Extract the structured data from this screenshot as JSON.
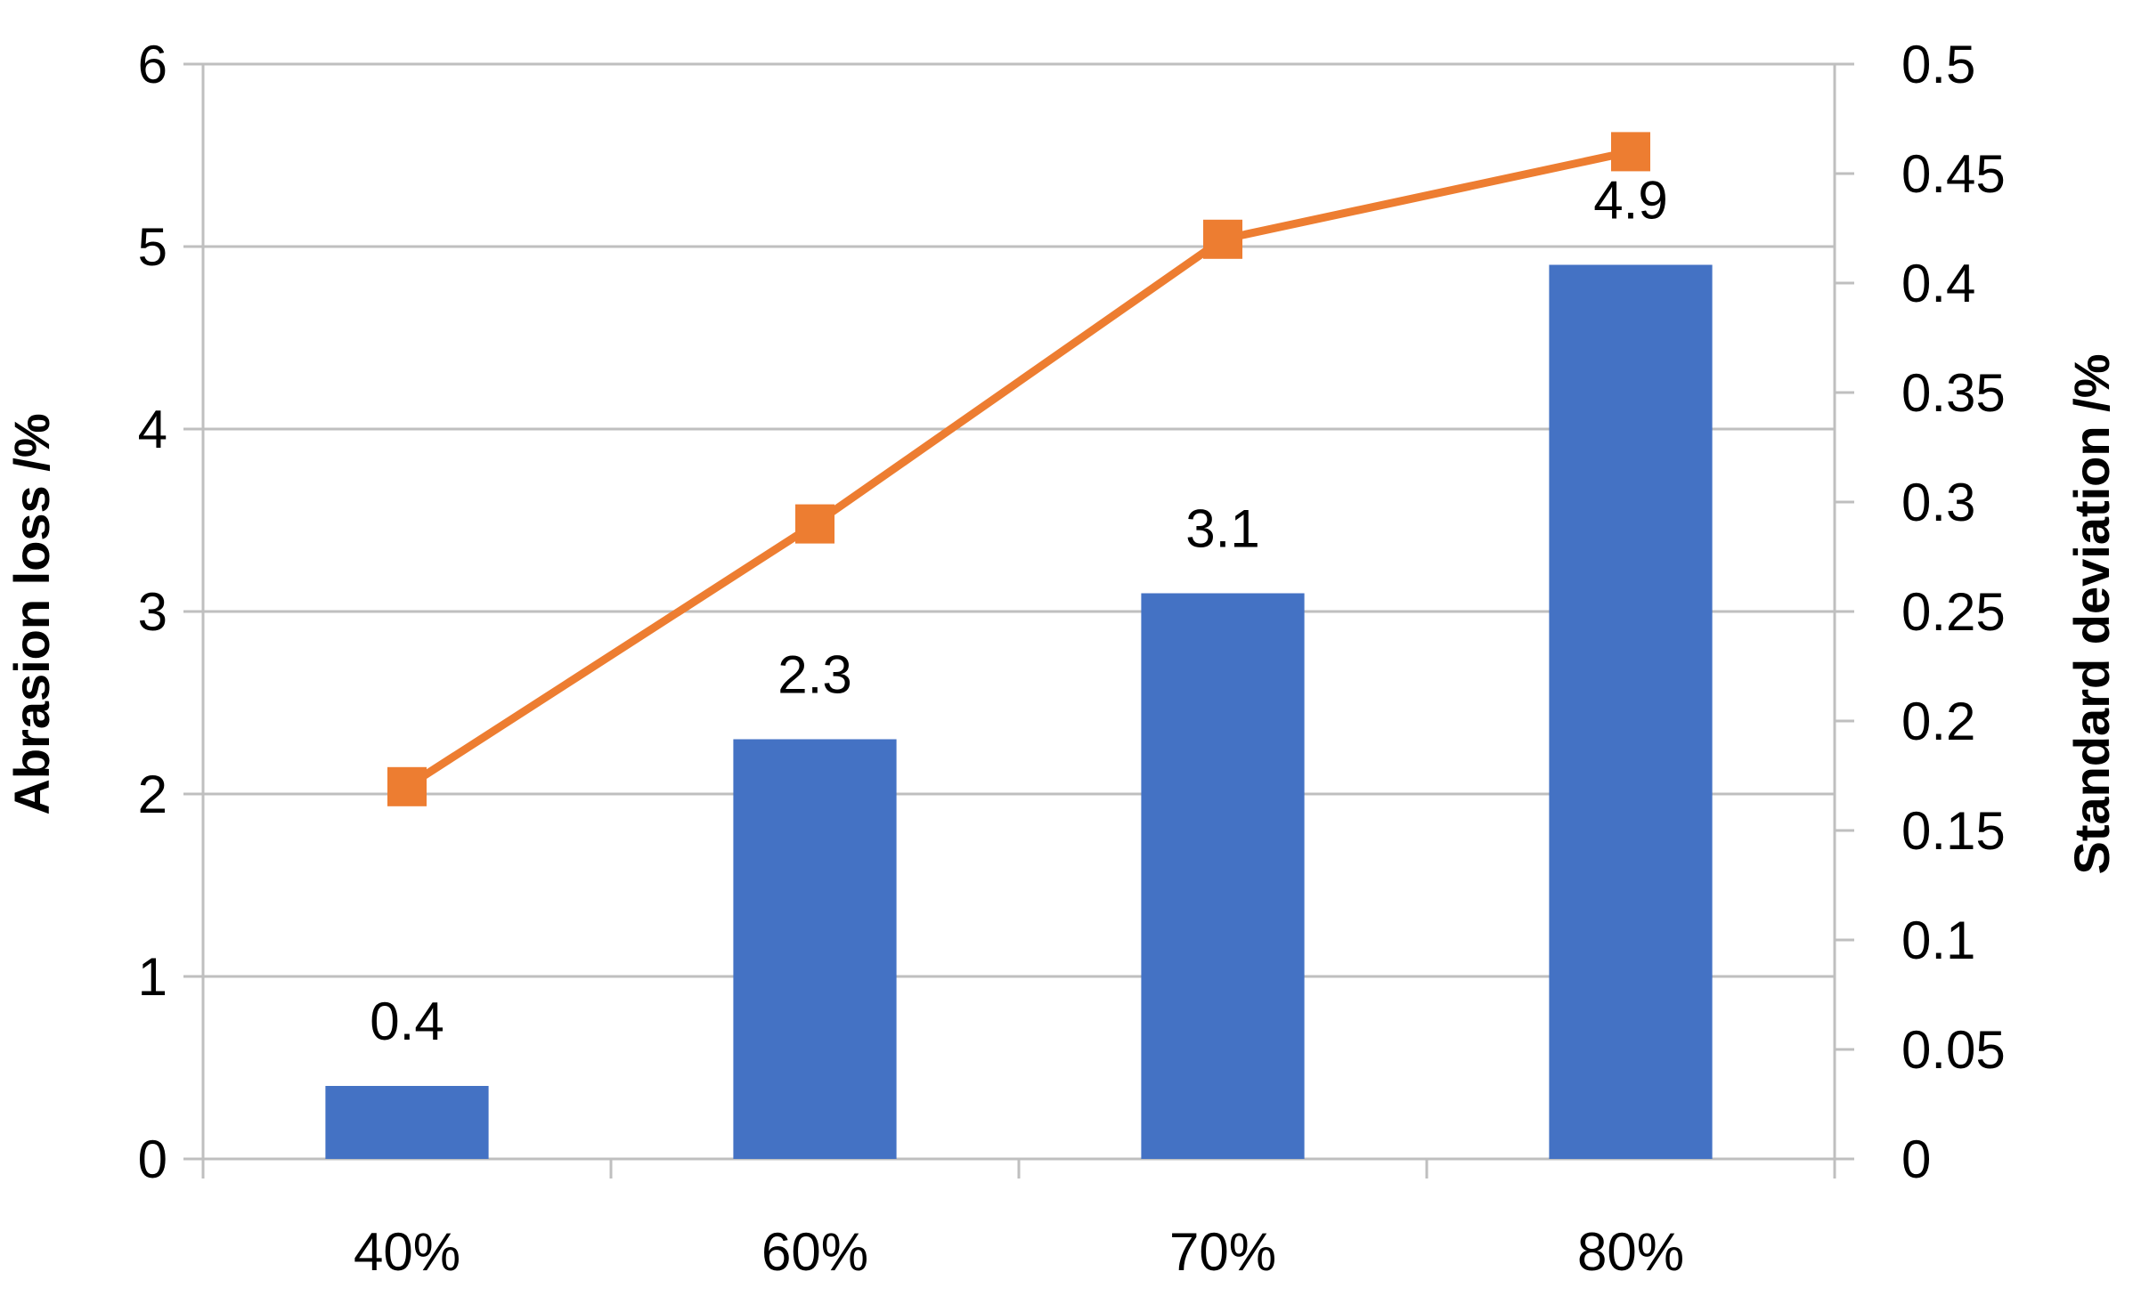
{
  "chart_data": {
    "type": "bar",
    "categories": [
      "40%",
      "60%",
      "70%",
      "80%"
    ],
    "series": [
      {
        "type": "bar",
        "axis": "left",
        "values": [
          0.4,
          2.3,
          3.1,
          4.9
        ],
        "color": "#4472c4",
        "data_labels": [
          "0.4",
          "2.3",
          "3.1",
          "4.9"
        ]
      },
      {
        "type": "line",
        "axis": "right",
        "values": [
          0.17,
          0.29,
          0.42,
          0.46
        ],
        "color": "#ed7d31",
        "marker": "square"
      }
    ],
    "title": "",
    "xlabel": "",
    "ylabel": "Abrasion loss /%",
    "y2label": "Standard deviation /%",
    "ylim": [
      0,
      6
    ],
    "y2lim": [
      0,
      0.5
    ],
    "yticks": [
      "0",
      "1",
      "2",
      "3",
      "4",
      "5",
      "6"
    ],
    "y2ticks": [
      "0",
      "0.05",
      "0.1",
      "0.15",
      "0.2",
      "0.25",
      "0.3",
      "0.35",
      "0.4",
      "0.45",
      "0.5"
    ],
    "grid": true,
    "legend": "none"
  }
}
